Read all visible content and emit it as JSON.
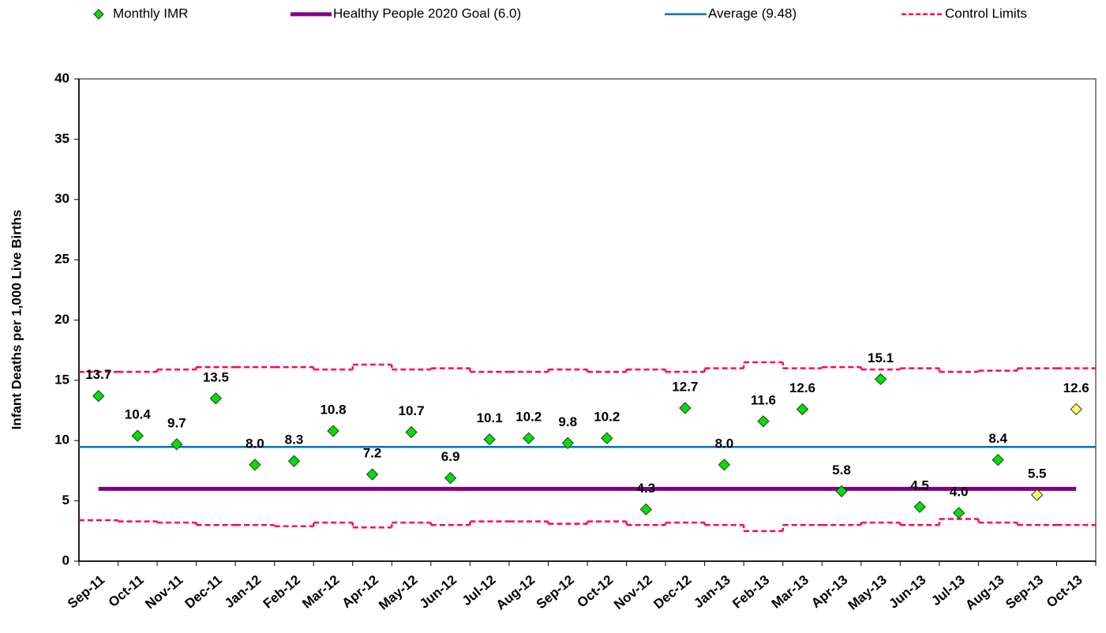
{
  "chart_data": {
    "type": "control",
    "y_label": "Infant Deaths per 1,000 Live Births",
    "categories": [
      "Sep-11",
      "Oct-11",
      "Nov-11",
      "Dec-11",
      "Jan-12",
      "Feb-12",
      "Mar-12",
      "Apr-12",
      "May-12",
      "Jun-12",
      "Jul-12",
      "Aug-12",
      "Sep-12",
      "Oct-12",
      "Nov-12",
      "Dec-12",
      "Jan-13",
      "Feb-13",
      "Mar-13",
      "Apr-13",
      "May-13",
      "Jun-13",
      "Jul-13",
      "Aug-13",
      "Sep-13",
      "Oct-13"
    ],
    "series": [
      {
        "name": "Monthly IMR",
        "values": [
          13.7,
          10.4,
          9.7,
          13.5,
          8.0,
          8.3,
          10.8,
          7.2,
          10.7,
          6.9,
          10.1,
          10.2,
          9.8,
          10.2,
          4.3,
          12.7,
          8.0,
          11.6,
          12.6,
          5.8,
          15.1,
          4.5,
          4.0,
          8.4,
          5.5,
          12.6
        ],
        "value_labels": [
          "13.7",
          "10.4",
          "9.7",
          "13.5",
          "8.0",
          "8.3",
          "10.8",
          "7.2",
          "10.7",
          "6.9",
          "10.1",
          "10.2",
          "9.8",
          "10.2",
          "4.3",
          "12.7",
          "8.0",
          "11.6",
          "12.6",
          "5.8",
          "15.1",
          "4.5",
          "4.0",
          "8.4",
          "5.5",
          "12.6"
        ],
        "colors": [
          "#00e000",
          "#00e000",
          "#00e000",
          "#00e000",
          "#00e000",
          "#00e000",
          "#00e000",
          "#00e000",
          "#00e000",
          "#00e000",
          "#00e000",
          "#00e000",
          "#00e000",
          "#00e000",
          "#00e000",
          "#00e000",
          "#00e000",
          "#00e000",
          "#00e000",
          "#00e000",
          "#00e000",
          "#00e000",
          "#00e000",
          "#00e000",
          "#ffff66",
          "#ffff66"
        ]
      },
      {
        "name": "Healthy People 2020 Goal (6.0)",
        "value": 6.0,
        "color": "#800080"
      },
      {
        "name": "Average (9.48)",
        "value": 9.48,
        "color": "#0070c0"
      },
      {
        "name": "Control Limits",
        "color": "#ff0066",
        "upper": [
          15.7,
          15.7,
          15.9,
          16.1,
          16.1,
          16.1,
          15.9,
          16.3,
          15.9,
          16.0,
          15.7,
          15.7,
          15.9,
          15.7,
          15.9,
          15.7,
          16.0,
          16.5,
          16.0,
          16.1,
          15.9,
          16.0,
          15.7,
          15.8,
          16.0,
          16.0
        ],
        "lower": [
          3.4,
          3.3,
          3.2,
          3.0,
          3.0,
          2.9,
          3.2,
          2.8,
          3.2,
          3.0,
          3.3,
          3.3,
          3.1,
          3.3,
          3.0,
          3.2,
          3.0,
          2.5,
          3.0,
          3.0,
          3.2,
          3.0,
          3.5,
          3.2,
          3.0,
          3.0
        ]
      }
    ],
    "ylim": [
      0,
      40
    ],
    "yticks": [
      0,
      5,
      10,
      15,
      20,
      25,
      30,
      35,
      40
    ],
    "grid": false
  }
}
